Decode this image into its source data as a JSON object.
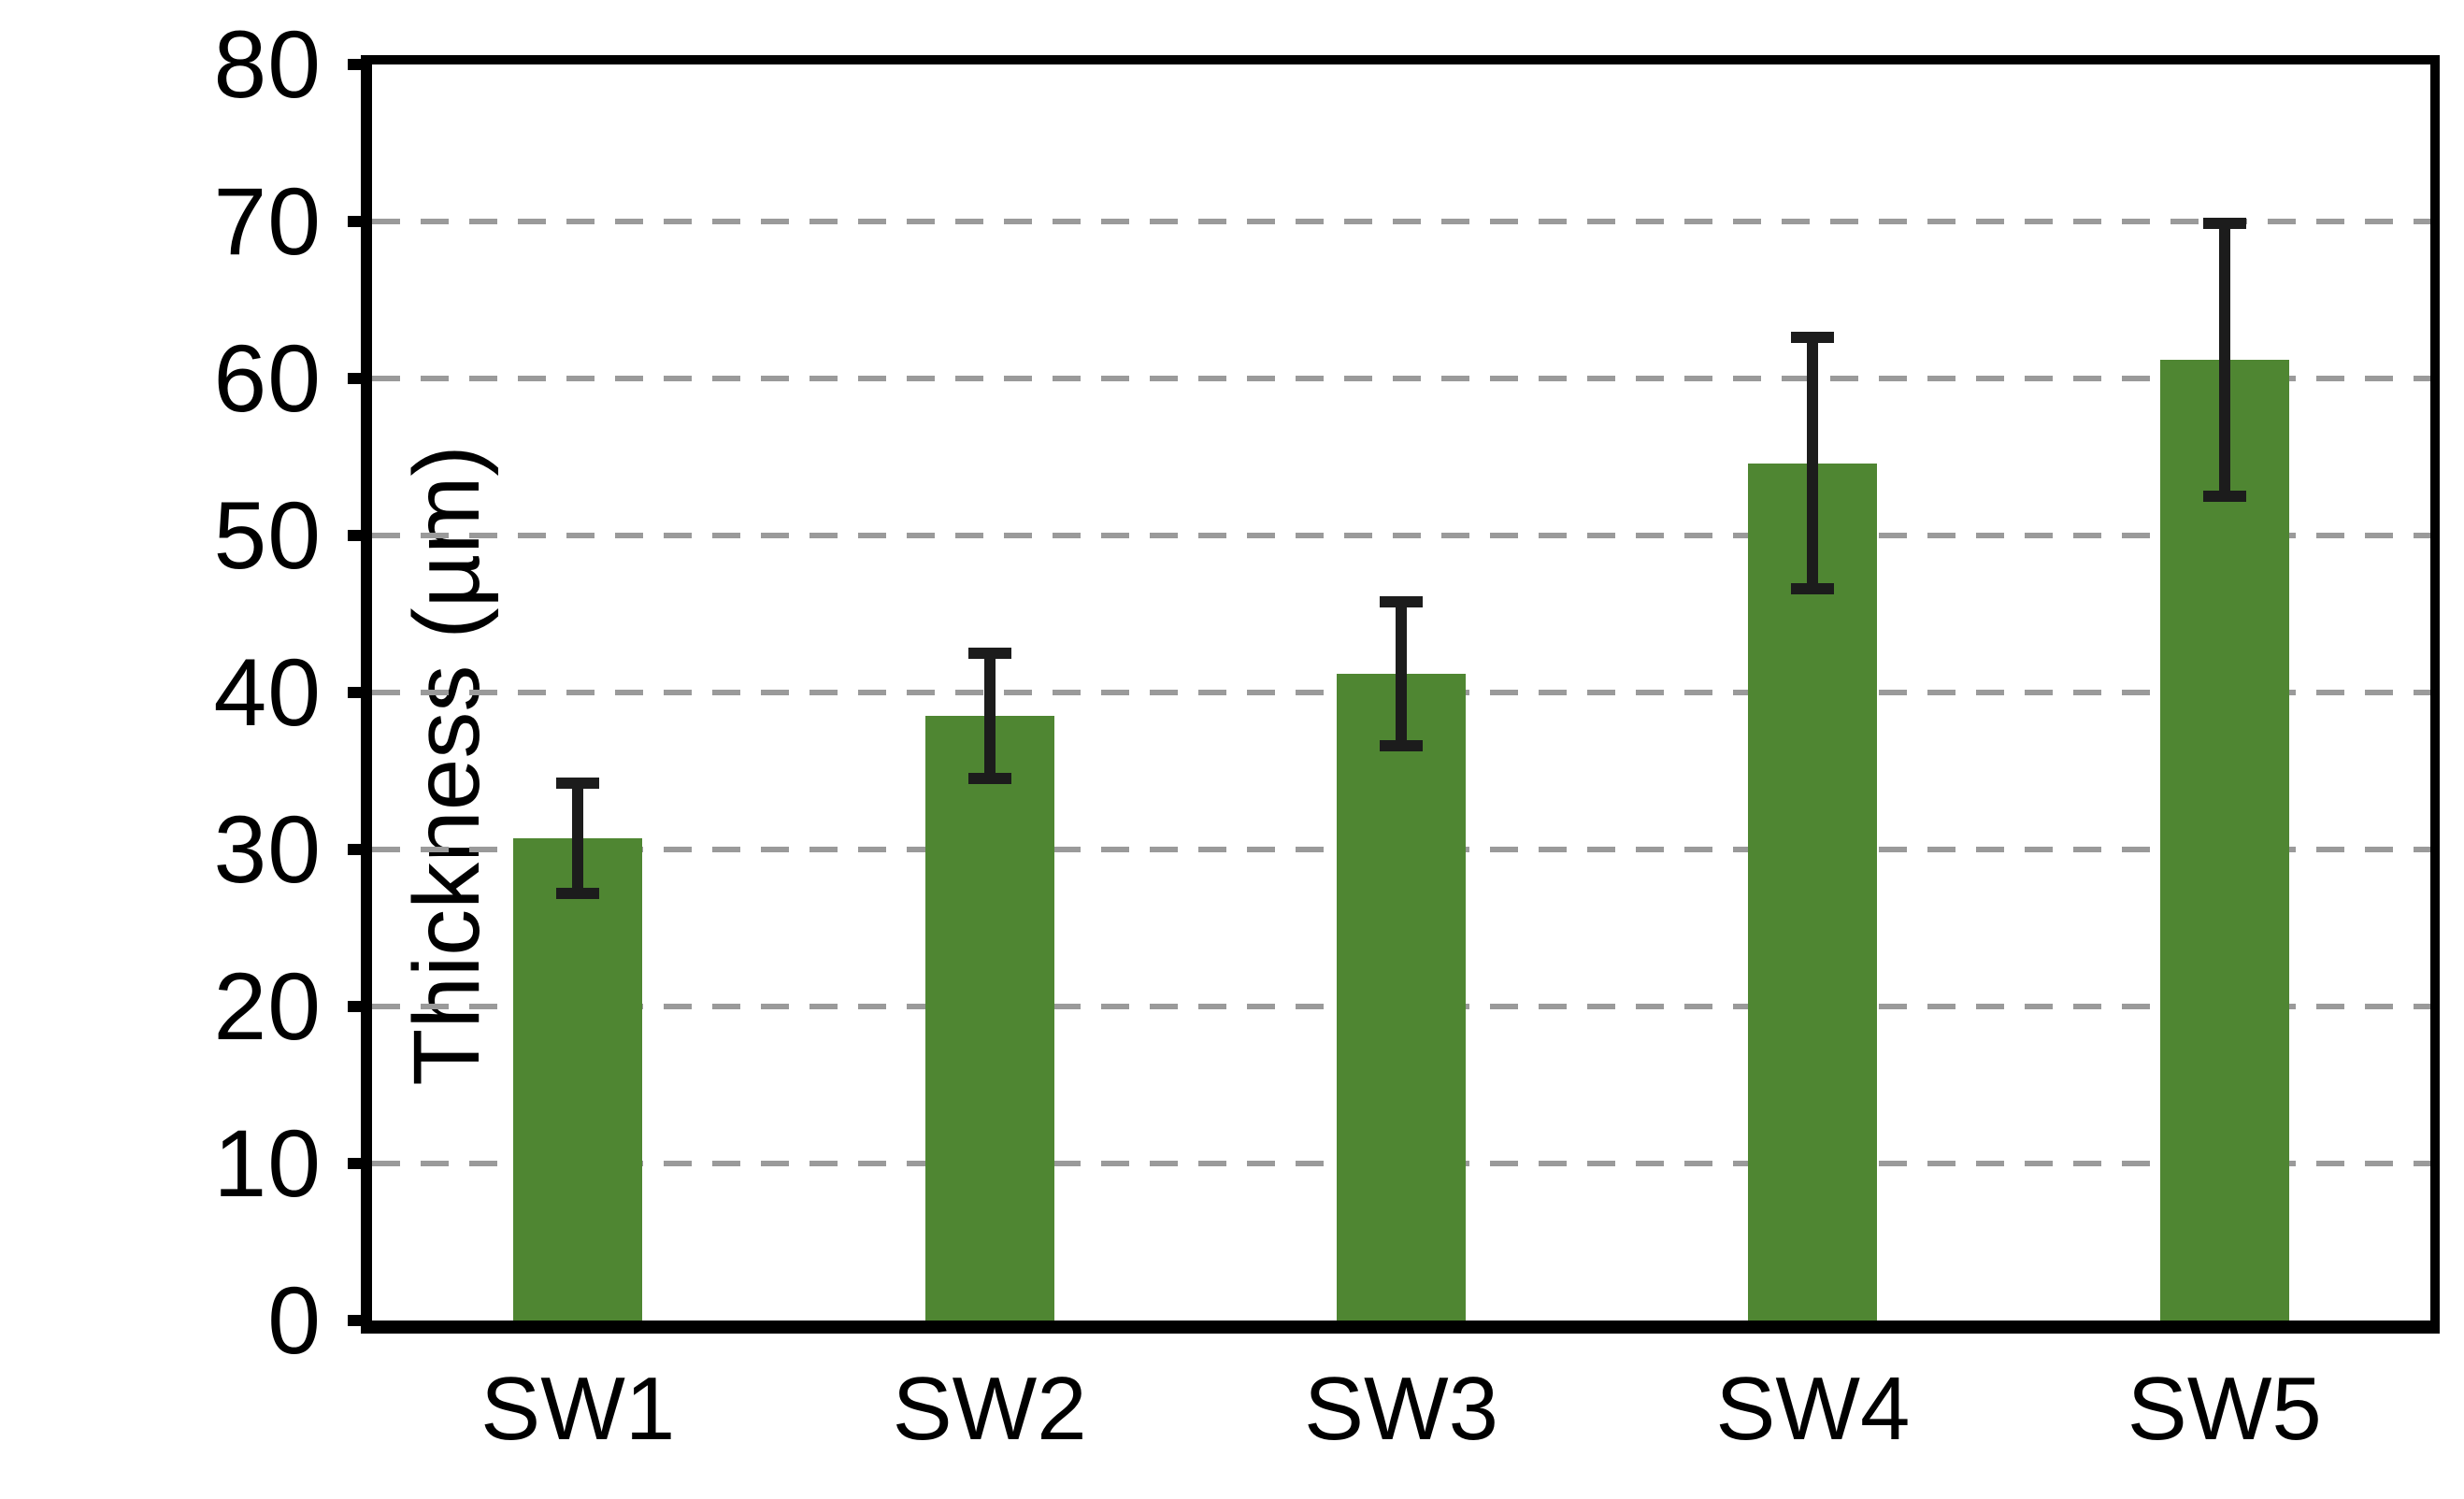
{
  "chart_data": {
    "type": "bar",
    "title": "",
    "categories": [
      "SW1",
      "SW2",
      "SW3",
      "SW4",
      "SW5"
    ],
    "values": [
      30.7,
      38.5,
      41.2,
      54.6,
      61.2
    ],
    "error_bars": [
      3.5,
      4.0,
      4.6,
      8.0,
      8.7
    ],
    "xlabel": "",
    "ylabel": "Thickness (µm)",
    "ylim": [
      0,
      80
    ],
    "yticks": [
      0,
      10,
      20,
      30,
      40,
      50,
      60,
      70,
      80
    ],
    "gridlines_at": [
      10,
      20,
      30,
      40,
      50,
      60,
      70
    ],
    "grid_style": "horizontal-dashed",
    "legend": "none",
    "colors": {
      "bar": "#4f8632",
      "error": "#1c1c1c",
      "grid": "#9a9a9a",
      "axis": "#000000",
      "text": "#000000",
      "background": "#ffffff"
    }
  }
}
